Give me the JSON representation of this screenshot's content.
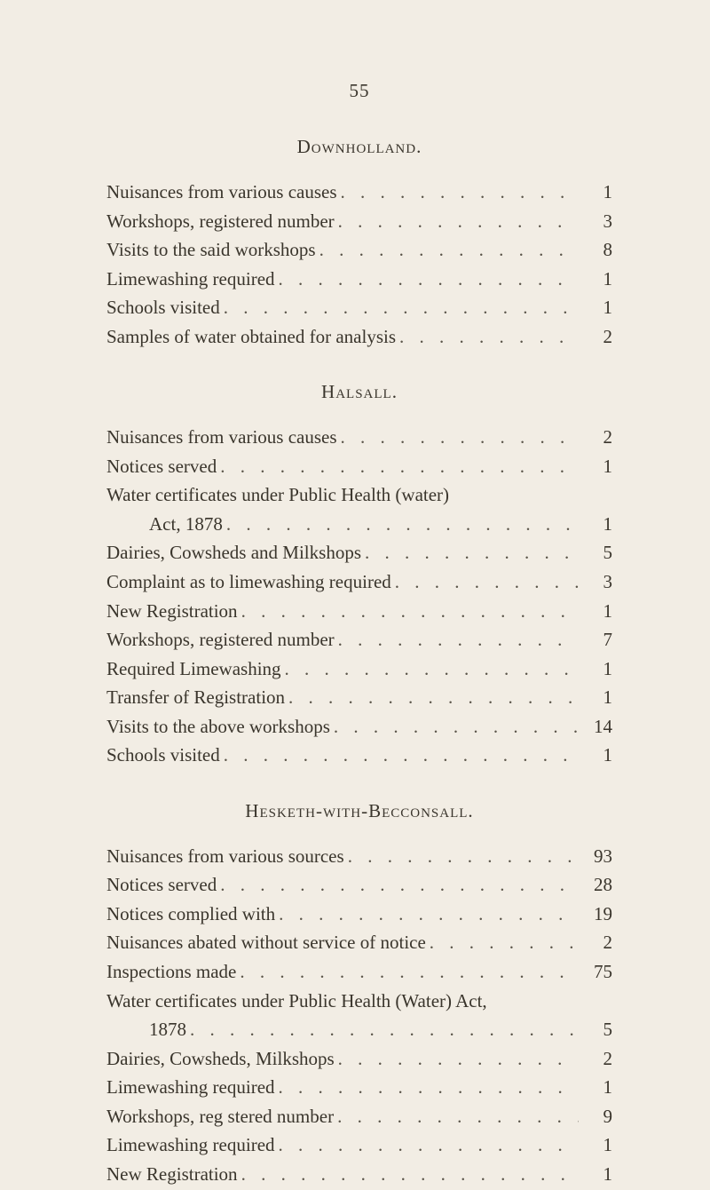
{
  "page_number": "55",
  "sections": [
    {
      "heading": "Downholland.",
      "entries": [
        {
          "label": "Nuisances from various causes",
          "value": "1"
        },
        {
          "label": "Workshops, registered number",
          "value": "3"
        },
        {
          "label": "Visits to the said workshops",
          "value": "8"
        },
        {
          "label": "Limewashing required",
          "value": "1"
        },
        {
          "label": "Schools visited",
          "value": "1"
        },
        {
          "label": "Samples of water obtained for analysis",
          "value": "2"
        }
      ]
    },
    {
      "heading": "Halsall.",
      "entries": [
        {
          "label": "Nuisances from various causes",
          "value": "2"
        },
        {
          "label": "Notices served",
          "value": "1"
        },
        {
          "label": "Water certificates under Public Health (water)",
          "value": "",
          "noval": true
        },
        {
          "label": "Act, 1878",
          "value": "1",
          "sub": true
        },
        {
          "label": "Dairies, Cowsheds and Milkshops",
          "value": "5"
        },
        {
          "label": "Complaint as to limewashing required",
          "value": "3"
        },
        {
          "label": "New Registration",
          "value": "1"
        },
        {
          "label": "Workshops, registered number",
          "value": "7"
        },
        {
          "label": "Required Limewashing",
          "value": "1"
        },
        {
          "label": "Transfer of Registration",
          "value": "1"
        },
        {
          "label": "Visits to the above workshops",
          "value": "14"
        },
        {
          "label": "Schools visited",
          "value": "1"
        }
      ]
    },
    {
      "heading": "Hesketh-with-Becconsall.",
      "entries": [
        {
          "label": "Nuisances from various sources",
          "value": "93"
        },
        {
          "label": "Notices served",
          "value": "28"
        },
        {
          "label": "Notices complied with",
          "value": "19"
        },
        {
          "label": "Nuisances abated without service of notice",
          "value": "2"
        },
        {
          "label": "Inspections made",
          "value": "75"
        },
        {
          "label": "Water certificates under Public Health (Water) Act,",
          "value": "",
          "noval": true
        },
        {
          "label": "1878",
          "value": "5",
          "sub": true
        },
        {
          "label": "Dairies, Cowsheds, Milkshops",
          "value": "2"
        },
        {
          "label": "Limewashing required",
          "value": "1"
        },
        {
          "label": "Workshops, reg stered number",
          "value": "9"
        },
        {
          "label": "Limewashing required",
          "value": "1"
        },
        {
          "label": "New Registration",
          "value": "1"
        }
      ]
    }
  ],
  "dots_fill": ". . . . . . . . . . . . . . . . . . . . . . . . . . . . . . . . . . . . . . . . . . . . . . . . . . . ."
}
